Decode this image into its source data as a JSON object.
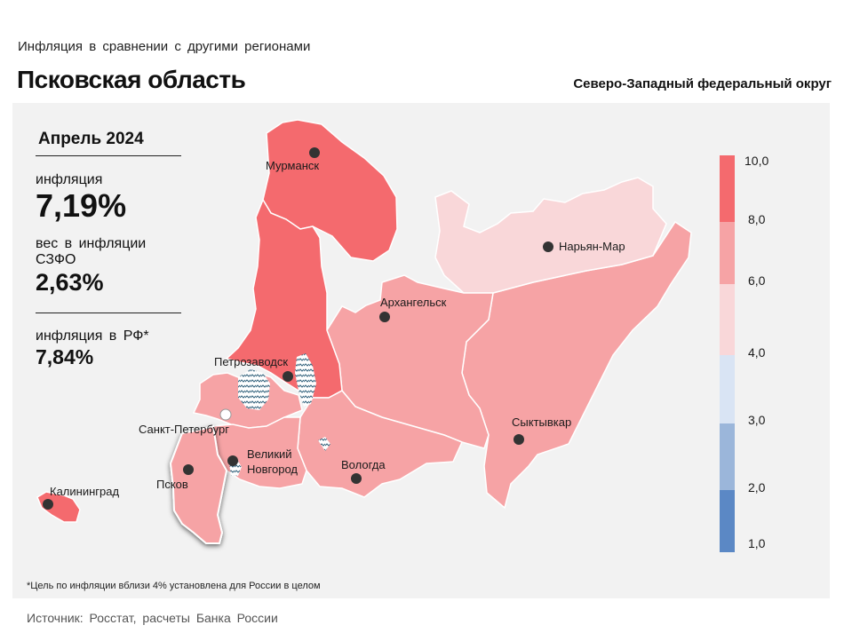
{
  "header": {
    "subtitle": "Инфляция  в сравнении  с другими  регионами",
    "title": "Псковская область",
    "district": "Северо-Западный федеральный округ"
  },
  "stats": {
    "period": "Апрель 2024",
    "inflation_label": "инфляция",
    "inflation_value": "7,19%",
    "weight_label": "вес в инфляции  СЗФО",
    "weight_value": "2,63%",
    "rf_label": "инфляция  в РФ*",
    "rf_value": "7,84%"
  },
  "legend": {
    "ticks": [
      "10,0",
      "8,0",
      "6,0",
      "4,0",
      "3,0",
      "2,0",
      "1,0"
    ],
    "colors": [
      "#f46a6e",
      "#f6a3a5",
      "#f9d7d9",
      "#d9e4f4",
      "#9bb6da",
      "#5b88c5"
    ]
  },
  "cities": [
    {
      "name": "Мурманск"
    },
    {
      "name": "Нарьян-Мар"
    },
    {
      "name": "Архангельск"
    },
    {
      "name": "Петрозаводск"
    },
    {
      "name": "Санкт-Петербург"
    },
    {
      "name": "Сыктывкар"
    },
    {
      "name": "Великий"
    },
    {
      "name": "Новгород"
    },
    {
      "name": "Вологда"
    },
    {
      "name": "Псков"
    },
    {
      "name": "Калининград"
    }
  ],
  "colors": {
    "high": "#f46a6e",
    "mid": "#f6a3a5",
    "low": "#f9d7d9"
  },
  "footnote": "*Цель по инфляции вблизи 4% установлена для России в целом",
  "source": "Источник:  Росстат,  расчеты Банка  России"
}
